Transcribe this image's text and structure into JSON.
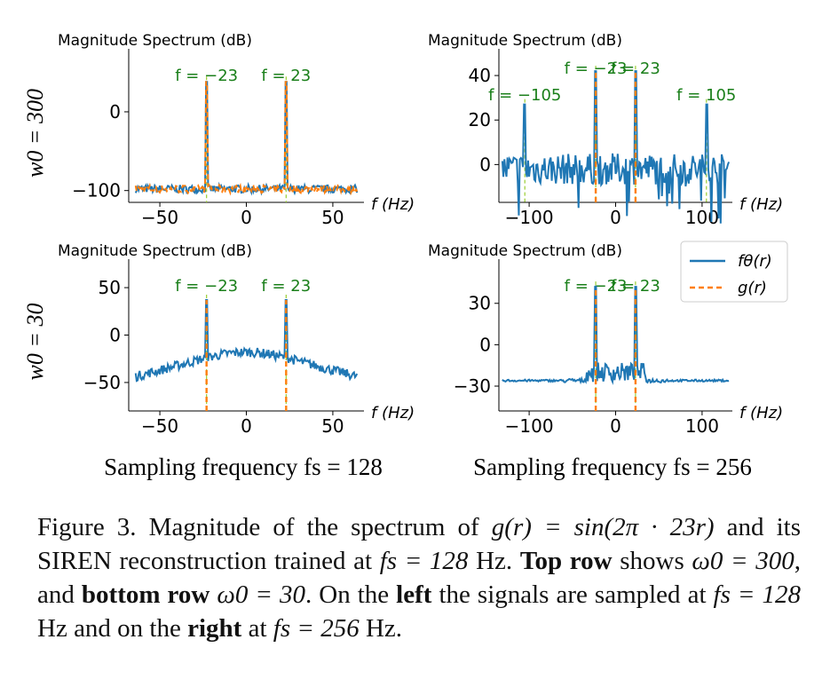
{
  "chart_data": [
    {
      "type": "line",
      "panel": "top-left",
      "title": "Magnitude Spectrum (dB)",
      "xlabel": "f (Hz)",
      "xlim": [
        -68,
        68
      ],
      "ylim": [
        -115,
        80
      ],
      "xticks": [
        -50,
        0,
        50
      ],
      "yticks": [
        0,
        -100
      ],
      "peaks": [
        {
          "f": -23,
          "value": 38
        },
        {
          "f": 23,
          "value": 38
        }
      ],
      "peak_labels": [
        "f = −23",
        "f = 23"
      ],
      "peak_label_freqs": [
        -23,
        23
      ],
      "noise_floor_fit": -98,
      "noise_floor_target": -98
    },
    {
      "type": "line",
      "panel": "top-right",
      "title": "Magnitude Spectrum (dB)",
      "xlabel": "f (Hz)",
      "xlim": [
        -135,
        135
      ],
      "ylim": [
        -17,
        52
      ],
      "xticks": [
        -100,
        0,
        100
      ],
      "yticks": [
        40,
        20,
        0
      ],
      "peaks": [
        {
          "f": -105,
          "value": 27
        },
        {
          "f": -23,
          "value": 42
        },
        {
          "f": 23,
          "value": 42
        },
        {
          "f": 105,
          "value": 27
        }
      ],
      "peak_labels": [
        "f = −105",
        "f = −23",
        "f = 23",
        "f = 105"
      ],
      "peak_label_freqs": [
        -105,
        -23,
        23,
        105
      ],
      "noise_floor_fit": -2
    },
    {
      "type": "line",
      "panel": "bottom-left",
      "title": "Magnitude Spectrum (dB)",
      "xlabel": "f (Hz)",
      "xlim": [
        -68,
        68
      ],
      "ylim": [
        -80,
        80
      ],
      "xticks": [
        -50,
        0,
        50
      ],
      "yticks": [
        50,
        0,
        -50
      ],
      "peaks": [
        {
          "f": -23,
          "value": 37
        },
        {
          "f": 23,
          "value": 37
        }
      ],
      "peak_labels": [
        "f = −23",
        "f = 23"
      ],
      "peak_label_freqs": [
        -23,
        23
      ],
      "noise_floor_fit": -30
    },
    {
      "type": "line",
      "panel": "bottom-right",
      "title": "Magnitude Spectrum (dB)",
      "xlabel": "f (Hz)",
      "xlim": [
        -135,
        135
      ],
      "ylim": [
        -48,
        62
      ],
      "xticks": [
        -100,
        0,
        100
      ],
      "yticks": [
        30,
        0,
        -30
      ],
      "peaks": [
        {
          "f": -23,
          "value": 42
        },
        {
          "f": 23,
          "value": 42
        }
      ],
      "peak_labels": [
        "f = −23",
        "f = 23"
      ],
      "peak_label_freqs": [
        -23,
        23
      ],
      "noise_floor_fit": -26
    }
  ],
  "legend": {
    "series": [
      {
        "name": "fθ(r)",
        "color": "#1f77b4",
        "style": "solid"
      },
      {
        "name": "g(r)",
        "color": "#ff7f0e",
        "style": "dashed"
      }
    ],
    "placement": "upper-right"
  },
  "row_labels": [
    "w0 = 300",
    "w0 = 30"
  ],
  "column_labels": [
    "Sampling frequency fs = 128",
    "Sampling frequency fs = 256"
  ],
  "caption": {
    "figure_label": "Figure 3.",
    "text_1": " Magnitude of the spectrum of ",
    "math_1": "g(r) = sin(2π · 23r)",
    "text_2": " and its SIREN reconstruction trained at ",
    "math_2": "fs = 128",
    "text_3": " Hz. ",
    "bold_1": "Top row",
    "text_4": " shows ",
    "math_3": "ω0 = 300",
    "text_5": ", and ",
    "bold_2": "bottom row",
    "text_6": " ",
    "math_4": "ω0 = 30",
    "text_7": ". On the ",
    "bold_3": "left",
    "text_8": " the signals are sampled at ",
    "math_5": "fs = 128",
    "text_9": " Hz and on the ",
    "bold_4": "right",
    "text_10": " at ",
    "math_6": "fs = 256",
    "text_11": " Hz."
  },
  "colors": {
    "fit": "#1f77b4",
    "target": "#ff7f0e",
    "annotation": "#1a7f1a",
    "annotation_line": "#9acd32"
  }
}
